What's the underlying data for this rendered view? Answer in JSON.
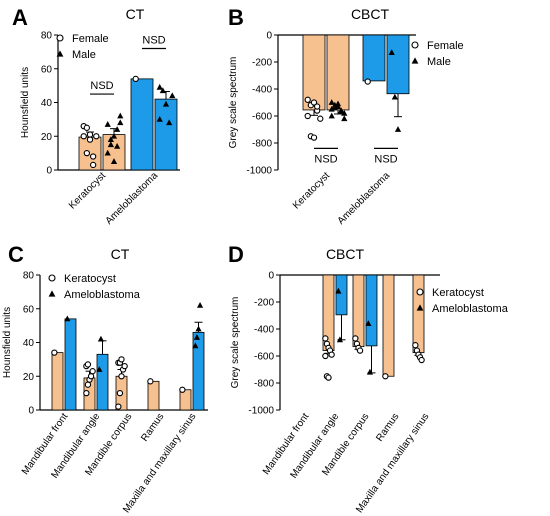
{
  "colors": {
    "orange": "#F6C08F",
    "blue": "#1D9BE8",
    "axis": "#000000"
  },
  "chart_data": [
    {
      "panel_letter": "A",
      "type": "bar",
      "title": "CT",
      "ylabel": "Hounsfield units",
      "ylim": [
        0,
        80
      ],
      "yticks": [
        0,
        20,
        40,
        60,
        80
      ],
      "categories": [
        "Keratocyst",
        "Ameloblastoma"
      ],
      "series": [
        {
          "name": "Female",
          "marker": "open-circle",
          "color_key": "orange",
          "values": [
            19.5,
            54
          ],
          "errors": [
            3,
            0
          ],
          "points": [
            [
              20,
              10,
              21,
              8,
              20,
              26,
              25,
              18,
              3
            ],
            [
              54
            ]
          ]
        },
        {
          "name": "Male",
          "marker": "filled-triangle",
          "color_key": "blue",
          "values": [
            21,
            42
          ],
          "errors": [
            3.5,
            4.5
          ],
          "points": [
            [
              10,
              18,
              20,
              24,
              28,
              27,
              15,
              5,
              14,
              32
            ],
            [
              30,
              47,
              39,
              28,
              44,
              49
            ]
          ]
        }
      ],
      "series_color_by_category": [
        "orange",
        "blue"
      ],
      "legend": "top-left",
      "annotations": [
        {
          "text": "NSD",
          "category": 0,
          "y": 45
        },
        {
          "text": "NSD",
          "category": 1,
          "y": 72
        }
      ]
    },
    {
      "panel_letter": "B",
      "type": "bar",
      "title": "CBCT",
      "ylabel": "Grey scale spectrum",
      "ylim": [
        -1000,
        0
      ],
      "yticks": [
        0,
        -200,
        -400,
        -600,
        -800,
        -1000
      ],
      "categories": [
        "Keratocyst",
        "Ameloblastoma"
      ],
      "series": [
        {
          "name": "Female",
          "marker": "open-circle",
          "color_key": "orange",
          "values": [
            -555,
            -340
          ],
          "errors": [
            40,
            0
          ],
          "points": [
            [
              -480,
              -520,
              -500,
              -560,
              -620,
              -600,
              -750,
              -760,
              -530
            ],
            [
              -345
            ]
          ]
        },
        {
          "name": "Male",
          "marker": "filled-triangle",
          "color_key": "blue",
          "values": [
            -555,
            -435
          ],
          "errors": [
            30,
            170
          ],
          "points": [
            [
              -500,
              -520,
              -530,
              -560,
              -580,
              -600,
              -540,
              -510,
              -570,
              -620,
              -550
            ],
            [
              -130,
              -460,
              -700
            ]
          ]
        }
      ],
      "series_color_by_category": [
        "orange",
        "blue"
      ],
      "legend": "top-right",
      "annotations": [
        {
          "text": "NSD",
          "category": 0,
          "y": -840
        },
        {
          "text": "NSD",
          "category": 1,
          "y": -840
        }
      ]
    },
    {
      "panel_letter": "C",
      "type": "bar",
      "title": "CT",
      "ylabel": "Hounsfield units",
      "ylim": [
        0,
        80
      ],
      "yticks": [
        0,
        20,
        40,
        60,
        80
      ],
      "categories": [
        "Mandibular front",
        "Mandibular angle",
        "Mandible corpus",
        "Ramus",
        "Maxilla and maxillary sinus"
      ],
      "series": [
        {
          "name": "Keratocyst",
          "marker": "open-circle",
          "color_key": "orange",
          "values": [
            34,
            19,
            20,
            17,
            12
          ],
          "errors": [
            0,
            4,
            4,
            0,
            0
          ],
          "points": [
            [
              34
            ],
            [
              10,
              15,
              18,
              20,
              23,
              26,
              27
            ],
            [
              2,
              10,
              20,
              24,
              26,
              28,
              28,
              30
            ],
            [
              17
            ],
            [
              12
            ]
          ]
        },
        {
          "name": "Ameloblastoma",
          "marker": "filled-triangle",
          "color_key": "blue",
          "values": [
            54,
            33,
            null,
            null,
            46
          ],
          "errors": [
            0,
            8,
            0,
            0,
            6
          ],
          "points": [
            [
              54
            ],
            [
              24,
              42
            ],
            [],
            [],
            [
              38,
              43,
              48,
              62
            ]
          ]
        }
      ],
      "legend": "top-left"
    },
    {
      "panel_letter": "D",
      "type": "bar",
      "title": "CBCT",
      "ylabel": "Grey scale spectrum",
      "ylim": [
        -1000,
        0
      ],
      "yticks": [
        0,
        -200,
        -400,
        -600,
        -800,
        -1000
      ],
      "categories": [
        "Mandibular front",
        "Mandibular angle",
        "Mandible corpus",
        "Ramus",
        "Maxilla and maxillary sinus"
      ],
      "series": [
        {
          "name": "Keratocyst",
          "marker": "open-circle",
          "color_key": "orange",
          "values": [
            null,
            -560,
            -530,
            -750,
            -575
          ],
          "errors": [
            0,
            20,
            20,
            0,
            20
          ],
          "points": [
            [],
            [
              -470,
              -510,
              -540,
              -560,
              -590,
              -600,
              -750,
              -760
            ],
            [
              -470,
              -510,
              -540,
              -560
            ],
            [
              -750
            ],
            [
              -520,
              -560,
              -590,
              -610,
              -630
            ]
          ]
        },
        {
          "name": "Ameloblastoma",
          "marker": "filled-triangle",
          "color_key": "blue",
          "values": [
            null,
            -295,
            -525,
            null,
            null
          ],
          "errors": [
            0,
            185,
            200,
            0,
            0
          ],
          "points": [
            [],
            [
              -120,
              -480
            ],
            [
              -360,
              -720
            ],
            [],
            []
          ]
        }
      ],
      "legend": "right"
    }
  ]
}
